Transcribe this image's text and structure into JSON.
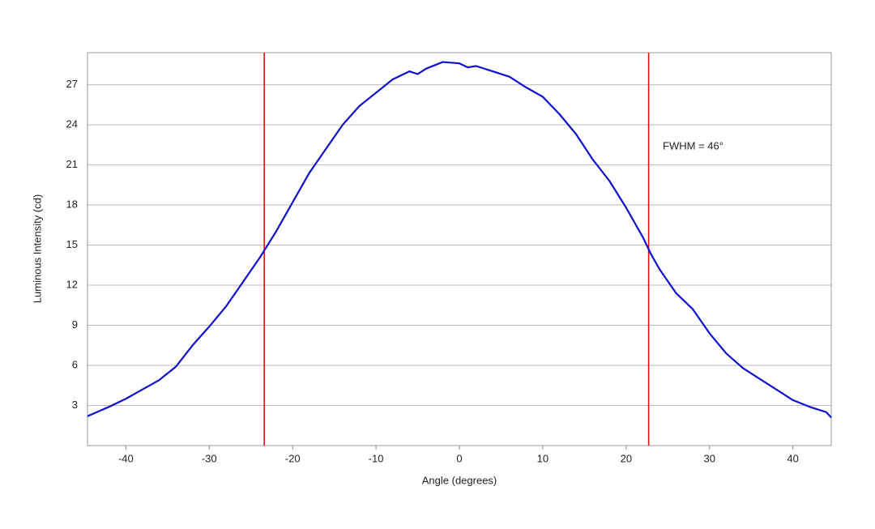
{
  "chart_data": {
    "type": "line",
    "x_label": "Angle (degrees)",
    "y_label": "Luminous Intensity (cd)",
    "annotation": "FWHM = 46°",
    "x": [
      -44.6,
      -42,
      -40,
      -38,
      -36,
      -34,
      -32,
      -30,
      -28,
      -26,
      -24,
      -23.4,
      -22,
      -20,
      -18,
      -16,
      -14,
      -12,
      -10,
      -8,
      -6,
      -5,
      -4,
      -2,
      0,
      1,
      2,
      4,
      6,
      8,
      10,
      12,
      14,
      16,
      18,
      20,
      22,
      23,
      24,
      26,
      28,
      30,
      32,
      34,
      36,
      38,
      40,
      42,
      44,
      44.6
    ],
    "values": [
      2.2,
      2.9,
      3.5,
      4.2,
      4.9,
      5.9,
      7.5,
      8.9,
      10.4,
      12.2,
      14.0,
      14.6,
      16.0,
      18.2,
      20.4,
      22.2,
      24.0,
      25.4,
      26.4,
      27.4,
      28.0,
      27.8,
      28.2,
      28.7,
      28.6,
      28.3,
      28.4,
      28.0,
      27.6,
      26.8,
      26.1,
      24.8,
      23.3,
      21.4,
      19.8,
      17.8,
      15.6,
      14.3,
      13.2,
      11.4,
      10.2,
      8.4,
      6.9,
      5.8,
      5.0,
      4.2,
      3.4,
      2.9,
      2.5,
      2.1
    ],
    "color": "#1010cc",
    "vlines": [
      -23.4,
      22.7
    ],
    "vline_color": "#dd1111",
    "xlim": [
      -44.6,
      44.6
    ],
    "xticks": [
      -40,
      -30,
      -20,
      -10,
      0,
      10,
      20,
      30,
      40
    ],
    "ylim": [
      0,
      29.4
    ],
    "yticks": [
      3,
      6,
      9,
      12,
      15,
      18,
      21,
      24,
      27
    ],
    "grid": true
  }
}
